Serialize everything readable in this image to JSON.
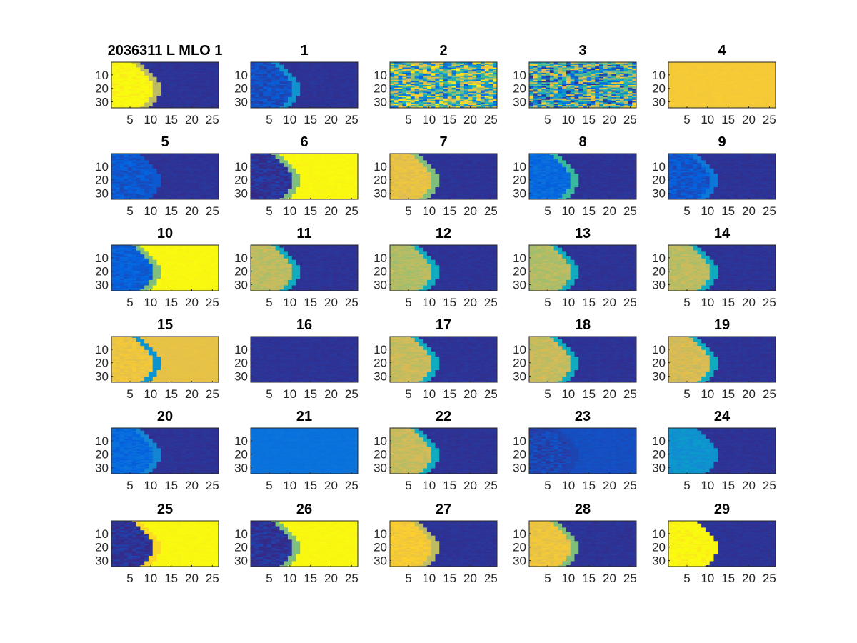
{
  "chart_data": {
    "type": "heatmap",
    "figure_title": "2036311 L MLO 1",
    "grid": "off",
    "xlim": [
      0.5,
      26.5
    ],
    "ylim": [
      0.5,
      34.5
    ],
    "xticks": [
      5,
      10,
      15,
      20,
      25
    ],
    "yticks": [
      10,
      20,
      30
    ],
    "xtick_labels": [
      "5",
      "10",
      "15",
      "20",
      "25"
    ],
    "ytick_labels": [
      "10",
      "20",
      "30"
    ],
    "colormap": [
      "#352a87",
      "#0363e1",
      "#1485d4",
      "#06a7c6",
      "#38b99e",
      "#92bf73",
      "#d9ba56",
      "#fcce2e",
      "#f9fb0e"
    ],
    "panels": [
      {
        "title": "2036311 L MLO 1",
        "pattern": "shape",
        "inside": 0.99,
        "outside": 0.02,
        "edge": 0.7
      },
      {
        "title": "1",
        "pattern": "shape",
        "inside": 0.08,
        "outside": 0.02,
        "edge": 0.3
      },
      {
        "title": "2",
        "pattern": "noise",
        "inside": 0.55,
        "outside": 0.55,
        "edge": 0.55
      },
      {
        "title": "3",
        "pattern": "noise",
        "inside": 0.45,
        "outside": 0.45,
        "edge": 0.45
      },
      {
        "title": "4",
        "pattern": "uniform",
        "inside": 0.85,
        "outside": 0.85,
        "edge": 0.85
      },
      {
        "title": "5",
        "pattern": "shape",
        "inside": 0.1,
        "outside": 0.02,
        "edge": 0.1
      },
      {
        "title": "6",
        "pattern": "shape",
        "inside": 0.02,
        "outside": 0.99,
        "edge": 0.6
      },
      {
        "title": "7",
        "pattern": "shape",
        "inside": 0.8,
        "outside": 0.02,
        "edge": 0.6
      },
      {
        "title": "8",
        "pattern": "shape",
        "inside": 0.15,
        "outside": 0.02,
        "edge": 0.5
      },
      {
        "title": "9",
        "pattern": "shape",
        "inside": 0.1,
        "outside": 0.02,
        "edge": 0.2
      },
      {
        "title": "10",
        "pattern": "shape",
        "inside": 0.12,
        "outside": 0.99,
        "edge": 0.6
      },
      {
        "title": "11",
        "pattern": "shape",
        "inside": 0.7,
        "outside": 0.02,
        "edge": 0.4
      },
      {
        "title": "12",
        "pattern": "shape",
        "inside": 0.68,
        "outside": 0.02,
        "edge": 0.4
      },
      {
        "title": "13",
        "pattern": "shape",
        "inside": 0.68,
        "outside": 0.02,
        "edge": 0.4
      },
      {
        "title": "14",
        "pattern": "shape",
        "inside": 0.7,
        "outside": 0.02,
        "edge": 0.4
      },
      {
        "title": "15",
        "pattern": "shape",
        "inside": 0.82,
        "outside": 0.8,
        "edge": 0.3
      },
      {
        "title": "16",
        "pattern": "uniform",
        "inside": 0.02,
        "outside": 0.02,
        "edge": 0.02
      },
      {
        "title": "17",
        "pattern": "shape",
        "inside": 0.72,
        "outside": 0.02,
        "edge": 0.4
      },
      {
        "title": "18",
        "pattern": "shape",
        "inside": 0.72,
        "outside": 0.02,
        "edge": 0.4
      },
      {
        "title": "19",
        "pattern": "shape",
        "inside": 0.75,
        "outside": 0.02,
        "edge": 0.4
      },
      {
        "title": "20",
        "pattern": "shape",
        "inside": 0.15,
        "outside": 0.02,
        "edge": 0.25
      },
      {
        "title": "21",
        "pattern": "uniform",
        "inside": 0.18,
        "outside": 0.18,
        "edge": 0.18
      },
      {
        "title": "22",
        "pattern": "shape",
        "inside": 0.72,
        "outside": 0.02,
        "edge": 0.4
      },
      {
        "title": "23",
        "pattern": "shape",
        "inside": 0.06,
        "outside": 0.08,
        "edge": 0.06
      },
      {
        "title": "24",
        "pattern": "shape",
        "inside": 0.3,
        "outside": 0.02,
        "edge": 0.3
      },
      {
        "title": "25",
        "pattern": "shape",
        "inside": 0.02,
        "outside": 0.99,
        "edge": 0.9
      },
      {
        "title": "26",
        "pattern": "shape",
        "inside": 0.02,
        "outside": 0.99,
        "edge": 0.6
      },
      {
        "title": "27",
        "pattern": "shape",
        "inside": 0.85,
        "outside": 0.02,
        "edge": 0.7
      },
      {
        "title": "28",
        "pattern": "shape",
        "inside": 0.82,
        "outside": 0.02,
        "edge": 0.6
      },
      {
        "title": "29",
        "pattern": "shape",
        "inside": 0.99,
        "outside": 0.02,
        "edge": 0.99
      }
    ]
  }
}
